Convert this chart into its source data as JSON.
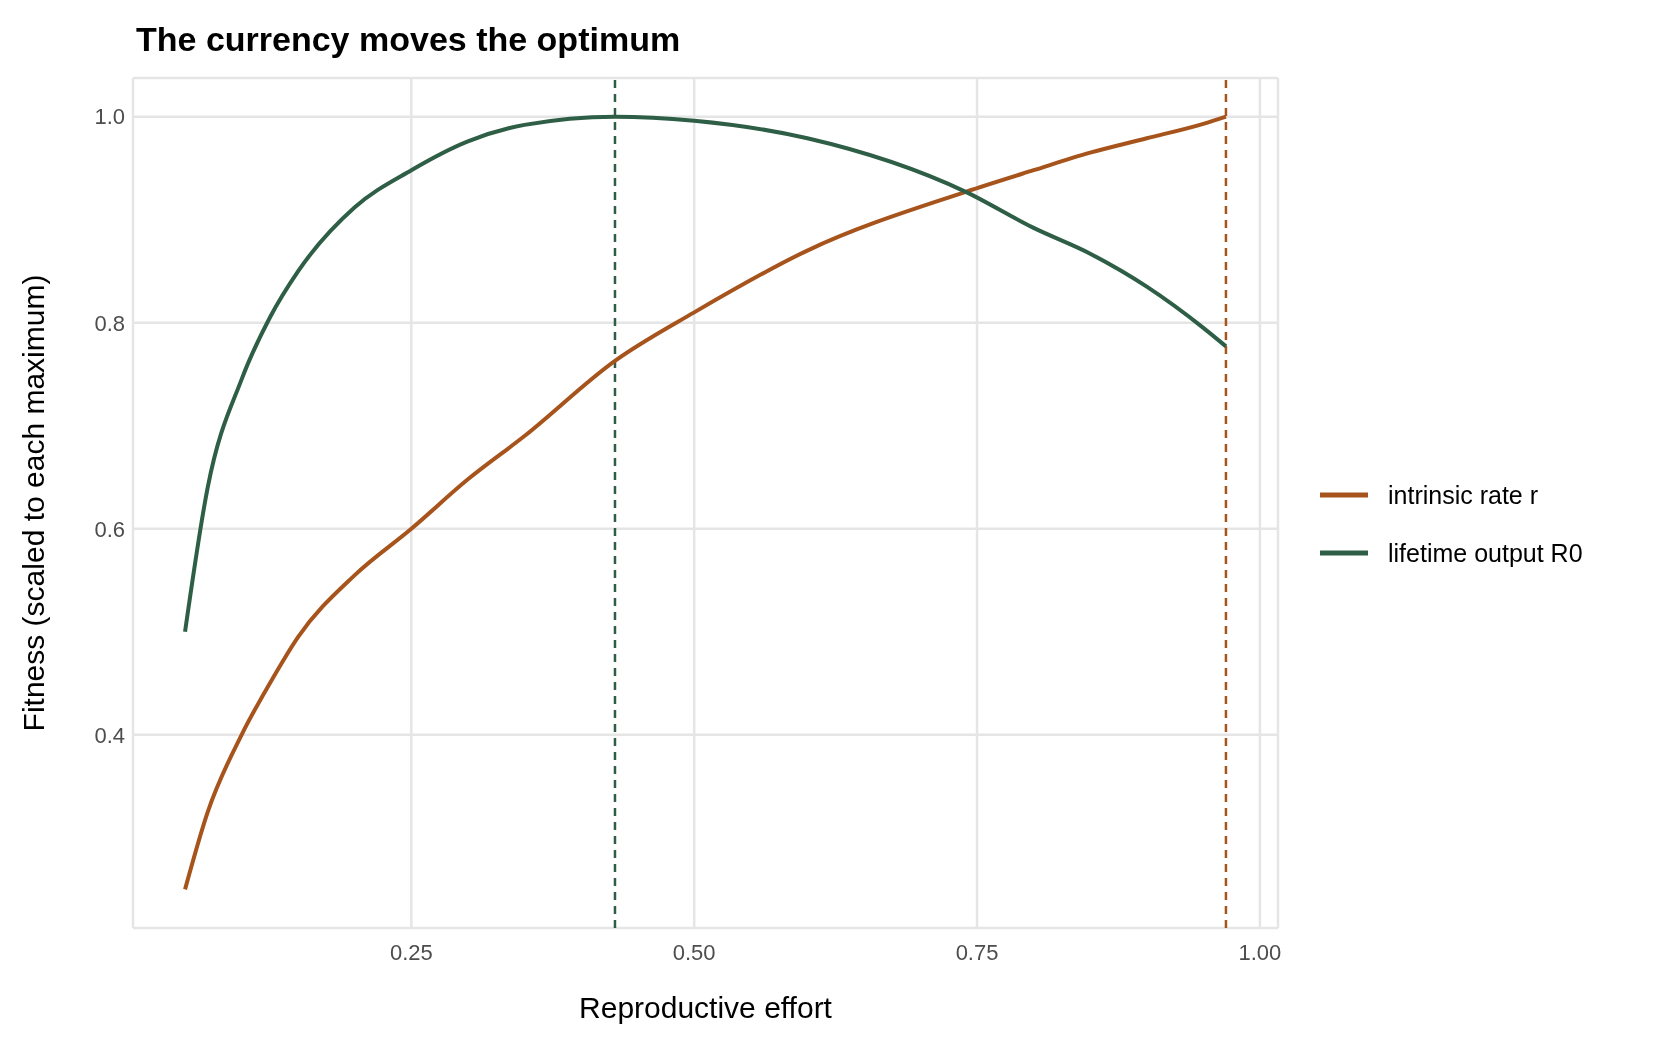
{
  "chart_data": {
    "type": "line",
    "title": "The currency moves the optimum",
    "xlabel": "Reproductive effort",
    "ylabel": "Fitness (scaled to each maximum)",
    "x": [
      0.05,
      0.07,
      0.1,
      0.125,
      0.15,
      0.2,
      0.25,
      0.3,
      0.35,
      0.43,
      0.5,
      0.6,
      0.74,
      0.8,
      0.85,
      0.9,
      0.95,
      0.97
    ],
    "series": [
      {
        "name": "intrinsic rate r",
        "color": "#a6541c",
        "values": [
          0.25,
          0.325,
          0.4,
          0.45,
          0.495,
          0.555,
          0.6,
          0.648,
          0.69,
          0.763,
          0.81,
          0.87,
          0.927,
          0.948,
          0.965,
          0.979,
          0.993,
          1.0
        ]
      },
      {
        "name": "lifetime output R0",
        "color": "#2e5e45",
        "values": [
          0.5,
          0.64,
          0.745,
          0.805,
          0.85,
          0.912,
          0.948,
          0.976,
          0.992,
          1.0,
          0.996,
          0.979,
          0.927,
          0.892,
          0.867,
          0.835,
          0.795,
          0.777
        ]
      }
    ],
    "xlim": [
      0.004,
      1.016
    ],
    "xticks": [
      {
        "value": 0.25,
        "label": "0.25"
      },
      {
        "value": 0.5,
        "label": "0.50"
      },
      {
        "value": 0.75,
        "label": "0.75"
      },
      {
        "value": 1.0,
        "label": "1.00"
      }
    ],
    "ylim": [
      0.2125,
      1.0375
    ],
    "yticks": [
      0.4,
      0.6,
      0.8,
      {
        "value": 1.0,
        "label": "1.0"
      }
    ],
    "ref_lines": [
      {
        "axis": "x",
        "value": 0.43,
        "color": "#2e5e45",
        "line_style": "dashed"
      },
      {
        "axis": "x",
        "value": 0.97,
        "color": "#a6541c",
        "line_style": "dashed"
      }
    ],
    "grid": true,
    "legend": "right",
    "line_style": "solid",
    "marker": "none"
  }
}
